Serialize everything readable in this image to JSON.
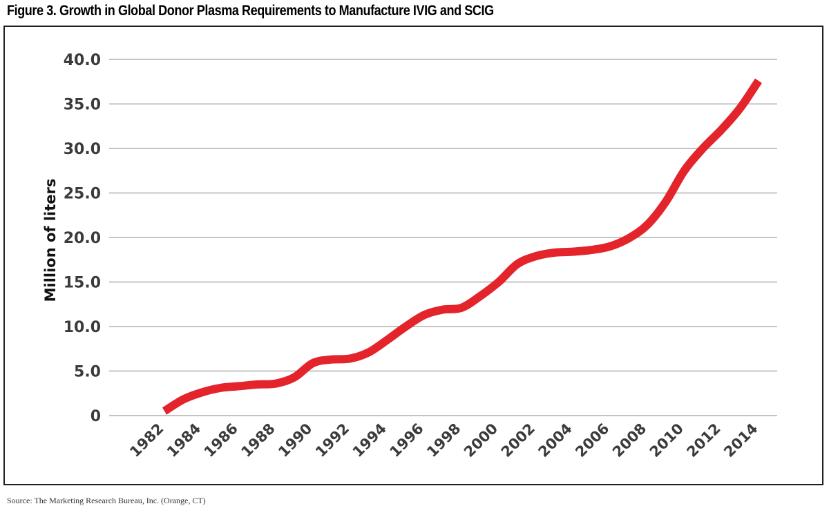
{
  "figure": {
    "title": "Figure 3. Growth in Global Donor Plasma Requirements to Manufacture IVIG and SCIG",
    "source": "Source: The Marketing Research Bureau, Inc. (Orange, CT)"
  },
  "colors": {
    "line": "#e3242b",
    "grid": "#c4c4c4",
    "axis_text": "#3b3b3b",
    "frame": "#231f20"
  },
  "chart_data": {
    "type": "line",
    "title": "Figure 3. Growth in Global Donor Plasma Requirements to Manufacture IVIG and SCIG",
    "xlabel": "",
    "ylabel": "Million of liters",
    "ylim": [
      0,
      40
    ],
    "yticks": [
      "0",
      "5.0",
      "10.0",
      "15.0",
      "20.0",
      "25.0",
      "30.0",
      "35.0",
      "40.0"
    ],
    "ytick_values": [
      0,
      5,
      10,
      15,
      20,
      25,
      30,
      35,
      40
    ],
    "xticks": [
      "1982",
      "1984",
      "1986",
      "1988",
      "1990",
      "1992",
      "1994",
      "1996",
      "1998",
      "2000",
      "2002",
      "2004",
      "2006",
      "2008",
      "2010",
      "2012",
      "2014"
    ],
    "grid": true,
    "series": [
      {
        "name": "Donor plasma requirements",
        "x": [
          1982,
          1983,
          1984,
          1985,
          1986,
          1987,
          1988,
          1989,
          1990,
          1991,
          1992,
          1993,
          1994,
          1995,
          1996,
          1997,
          1998,
          1999,
          2000,
          2001,
          2002,
          2003,
          2004,
          2005,
          2006,
          2007,
          2008,
          2009,
          2010,
          2011,
          2012,
          2013,
          2014
        ],
        "values": [
          0.5,
          1.8,
          2.6,
          3.1,
          3.3,
          3.5,
          3.6,
          4.3,
          5.9,
          6.3,
          6.4,
          7.1,
          8.5,
          10.0,
          11.3,
          11.9,
          12.1,
          13.4,
          15.0,
          17.0,
          17.9,
          18.3,
          18.4,
          18.6,
          19.0,
          19.9,
          21.4,
          24.0,
          27.5,
          30.0,
          32.1,
          34.5,
          37.6
        ]
      }
    ]
  }
}
